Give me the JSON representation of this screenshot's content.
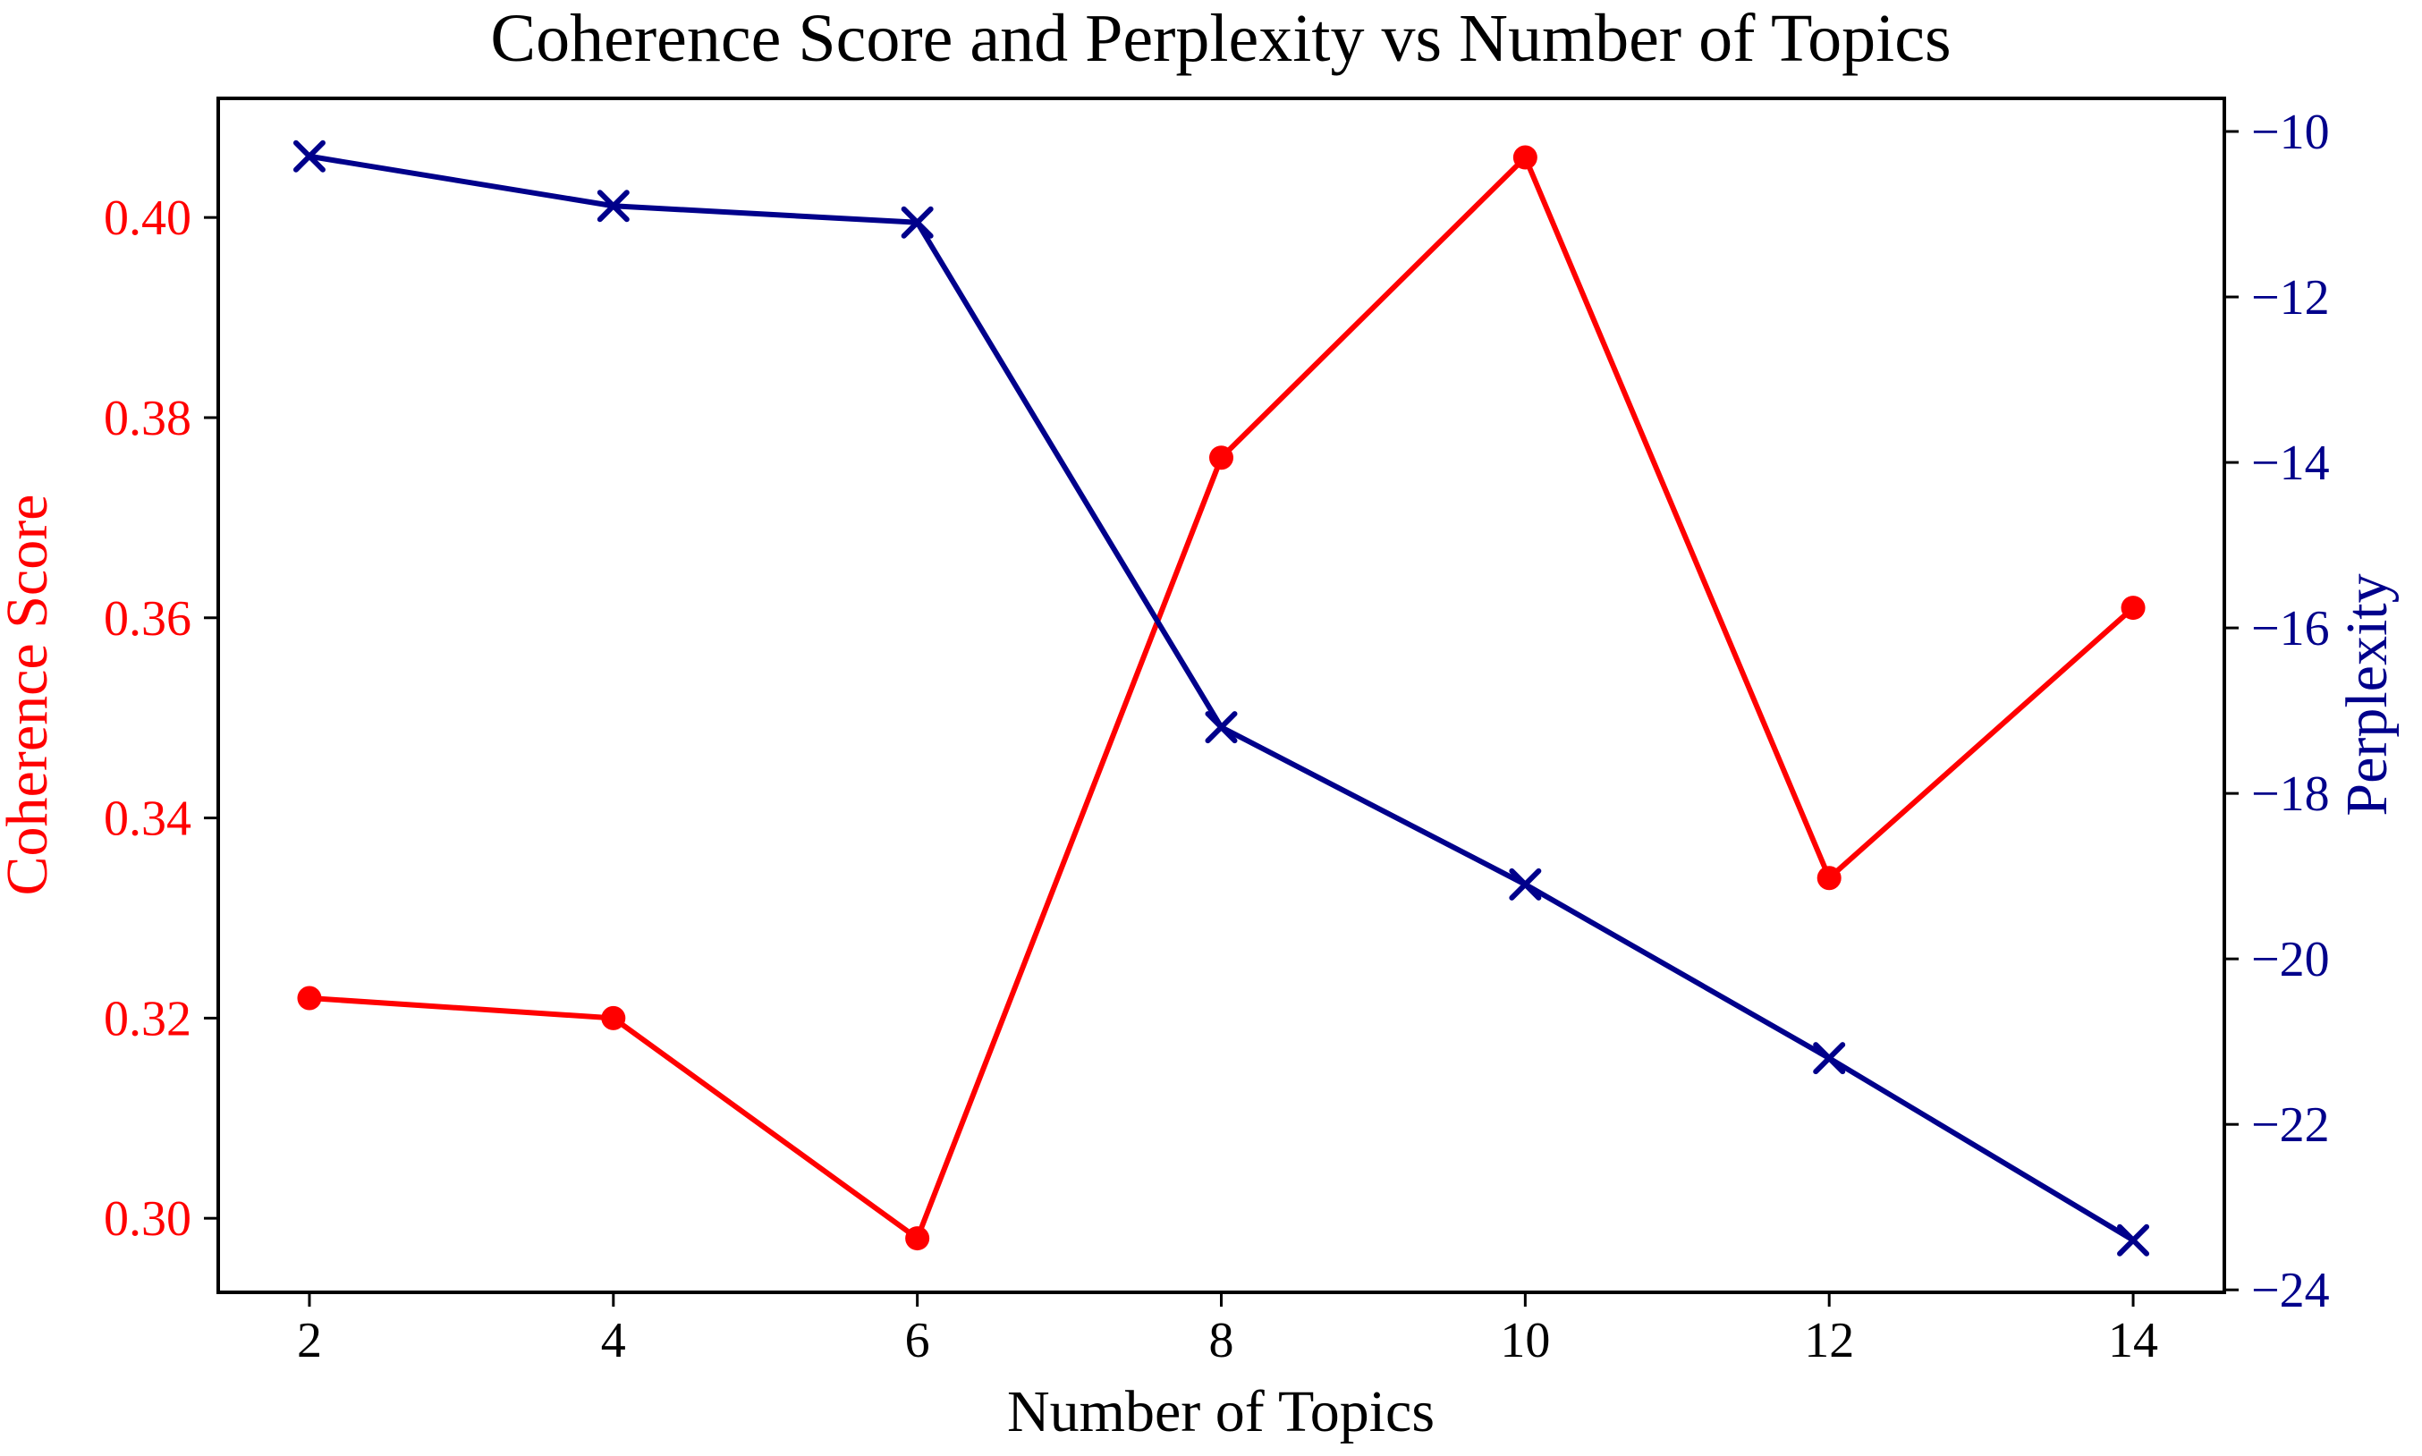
{
  "figure": {
    "title": "Coherence Score and Perplexity vs Number of Topics"
  },
  "chart_data": {
    "type": "line",
    "title": "Coherence Score and Perplexity vs Number of Topics",
    "xlabel": "Number of Topics",
    "ylabel_left": "Coherence Score",
    "ylabel_right": "Perplexity",
    "x": [
      2,
      4,
      6,
      8,
      10,
      12,
      14
    ],
    "series": [
      {
        "name": "Coherence Score",
        "axis": "left",
        "marker": "circle",
        "color": "#ff0000",
        "values": [
          0.322,
          0.32,
          0.298,
          0.376,
          0.406,
          0.334,
          0.361
        ]
      },
      {
        "name": "Perplexity",
        "axis": "right",
        "marker": "x",
        "color": "#00008b",
        "values": [
          -10.3,
          -10.9,
          -11.1,
          -17.2,
          -19.1,
          -21.2,
          -23.4
        ]
      }
    ],
    "x_ticks": [
      2,
      4,
      6,
      8,
      10,
      12,
      14
    ],
    "left_ticks": [
      0.3,
      0.32,
      0.34,
      0.36,
      0.38,
      0.4
    ],
    "right_ticks": [
      -10,
      -12,
      -14,
      -16,
      -18,
      -20,
      -22,
      -24
    ],
    "xlim": [
      1.4,
      14.6
    ],
    "left_ylim": [
      0.2926,
      0.4119
    ],
    "right_ylim": [
      -24.03,
      -9.6
    ],
    "grid": false,
    "legend": "none",
    "colors": {
      "left_axis": "#ff0000",
      "right_axis": "#00008b",
      "frame": "#000000",
      "title": "#000000",
      "x_tick_label": "#000000"
    }
  }
}
